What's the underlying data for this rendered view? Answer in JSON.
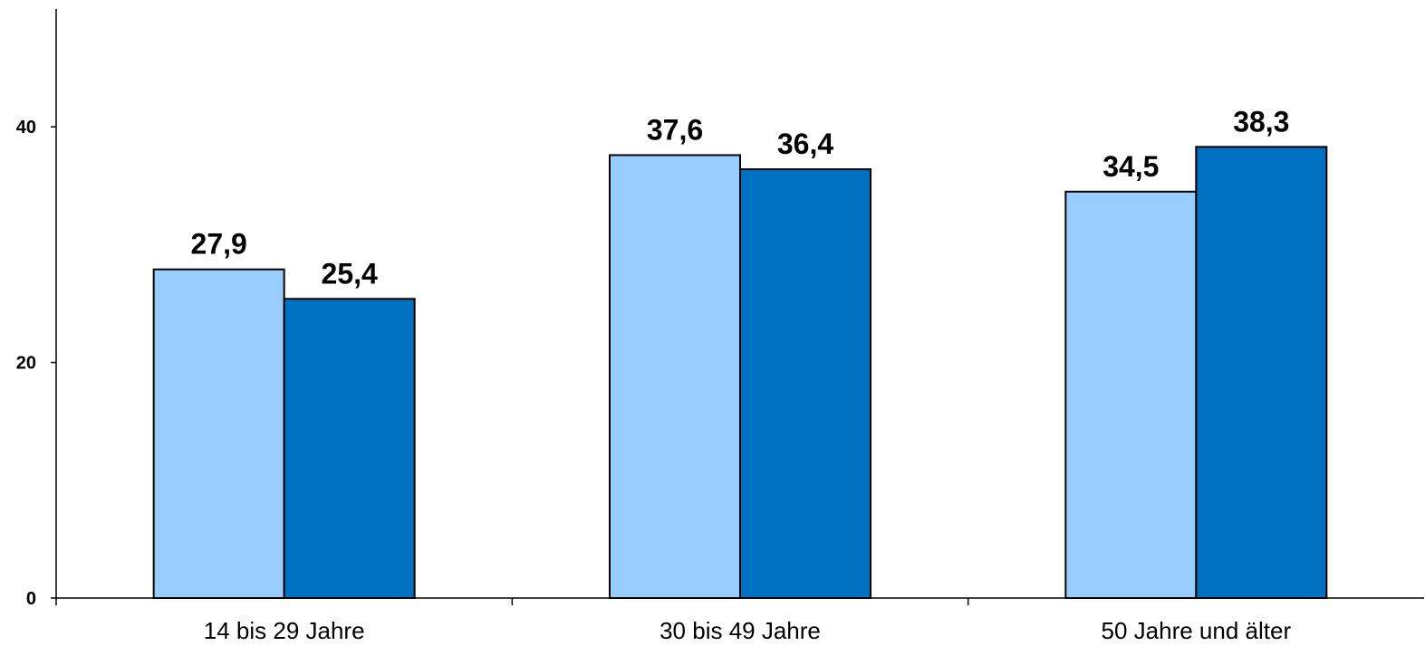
{
  "chart_data": {
    "type": "bar",
    "categories": [
      "14 bis 29 Jahre",
      "30 bis 49 Jahre",
      "50 Jahre und älter"
    ],
    "series": [
      {
        "values": [
          27.9,
          37.6,
          34.5
        ],
        "color": "#99ccff"
      },
      {
        "values": [
          25.4,
          36.4,
          38.3
        ],
        "color": "#0070c0"
      }
    ],
    "data_labels": [
      [
        "27,9",
        "37,6",
        "34,5"
      ],
      [
        "25,4",
        "36,4",
        "38,3"
      ]
    ],
    "yticks": [
      0,
      20,
      40
    ],
    "ylim": [
      0,
      50
    ],
    "grid": false,
    "legend": "none"
  }
}
